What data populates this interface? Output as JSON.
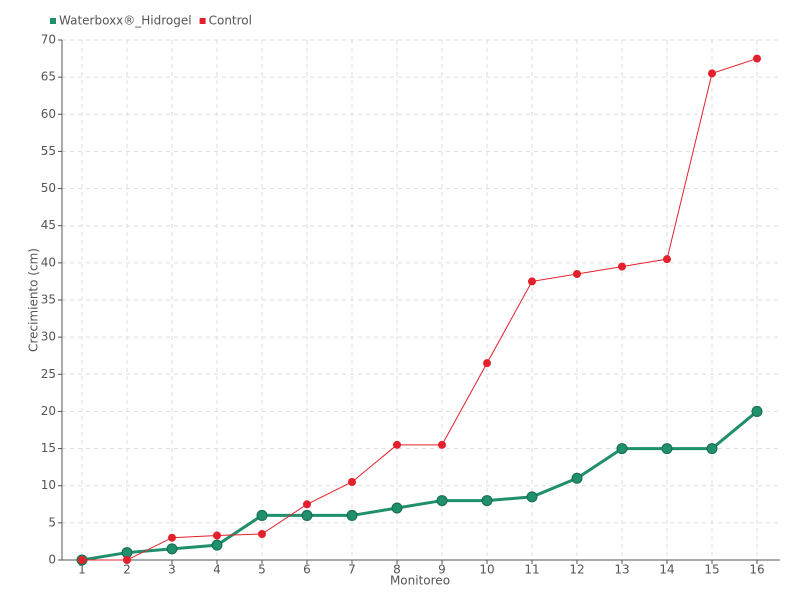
{
  "chart_data": {
    "type": "line",
    "x_label": "Monitoreo",
    "y_label": "Crecimiento (cm)",
    "categories": [
      "1",
      "2",
      "3",
      "4",
      "5",
      "6",
      "7",
      "8",
      "9",
      "10",
      "11",
      "12",
      "13",
      "14",
      "15",
      "16"
    ],
    "series": [
      {
        "name": "Waterboxx®_Hidrogel",
        "color": "#1f8f6c",
        "values": [
          0,
          1,
          1.5,
          2,
          6,
          6,
          6,
          7,
          8,
          8,
          8.5,
          11,
          15,
          15,
          15,
          20
        ]
      },
      {
        "name": "Control",
        "color": "#e3202b",
        "values": [
          0,
          0,
          3,
          3.3,
          3.5,
          7.5,
          10.5,
          15.5,
          15.5,
          26.5,
          37.5,
          38.5,
          39.5,
          40.5,
          65.5,
          67.5
        ]
      }
    ],
    "ylim": [
      0,
      70
    ],
    "yticks": [
      0,
      5,
      10,
      15,
      20,
      25,
      30,
      35,
      40,
      45,
      50,
      55,
      60,
      65,
      70
    ],
    "grid": true,
    "legend": "top-left"
  }
}
